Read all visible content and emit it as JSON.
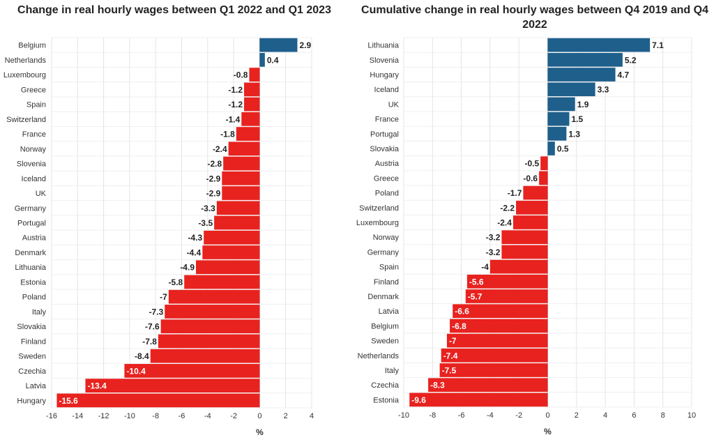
{
  "colors": {
    "positive": "#1f5f8b",
    "negative": "#e8221f",
    "label_dark": "#222222",
    "label_light": "#ffffff"
  },
  "chart_data": [
    {
      "type": "bar",
      "orientation": "horizontal",
      "title": "Change in real hourly wages between Q1 2022 and Q1 2023",
      "xlabel": "%",
      "xlim": [
        -16,
        4
      ],
      "xticks": [
        -16,
        -14,
        -12,
        -10,
        -8,
        -6,
        -4,
        -2,
        0,
        2,
        4
      ],
      "grid": true,
      "categories": [
        "Belgium",
        "Netherlands",
        "Luxembourg",
        "Greece",
        "Spain",
        "Switzerland",
        "France",
        "Norway",
        "Slovenia",
        "Iceland",
        "UK",
        "Germany",
        "Portugal",
        "Austria",
        "Denmark",
        "Lithuania",
        "Estonia",
        "Poland",
        "Italy",
        "Slovakia",
        "Finland",
        "Sweden",
        "Czechia",
        "Latvia",
        "Hungary"
      ],
      "values": [
        2.9,
        0.4,
        -0.8,
        -1.2,
        -1.2,
        -1.4,
        -1.8,
        -2.4,
        -2.8,
        -2.9,
        -2.9,
        -3.3,
        -3.5,
        -4.3,
        -4.4,
        -4.9,
        -5.8,
        -7,
        -7.3,
        -7.6,
        -7.8,
        -8.4,
        -10.4,
        -13.4,
        -15.6
      ]
    },
    {
      "type": "bar",
      "orientation": "horizontal",
      "title": "Cumulative change in real hourly wages between Q4 2019 and Q4 2022",
      "xlabel": "%",
      "xlim": [
        -10,
        10
      ],
      "xticks": [
        -10,
        -8,
        -6,
        -4,
        -2,
        0,
        2,
        4,
        6,
        8,
        10
      ],
      "grid": true,
      "categories": [
        "Lithuania",
        "Slovenia",
        "Hungary",
        "Iceland",
        "UK",
        "France",
        "Portugal",
        "Slovakia",
        "Austria",
        "Greece",
        "Poland",
        "Switzerland",
        "Luxembourg",
        "Norway",
        "Germany",
        "Spain",
        "Finland",
        "Denmark",
        "Latvia",
        "Belgium",
        "Sweden",
        "Netherlands",
        "Italy",
        "Czechia",
        "Estonia"
      ],
      "values": [
        7.1,
        5.2,
        4.7,
        3.3,
        1.9,
        1.5,
        1.3,
        0.5,
        -0.5,
        -0.6,
        -1.7,
        -2.2,
        -2.4,
        -3.2,
        -3.2,
        -4,
        -5.6,
        -5.7,
        -6.6,
        -6.8,
        -7,
        -7.4,
        -7.5,
        -8.3,
        -9.6
      ]
    }
  ]
}
